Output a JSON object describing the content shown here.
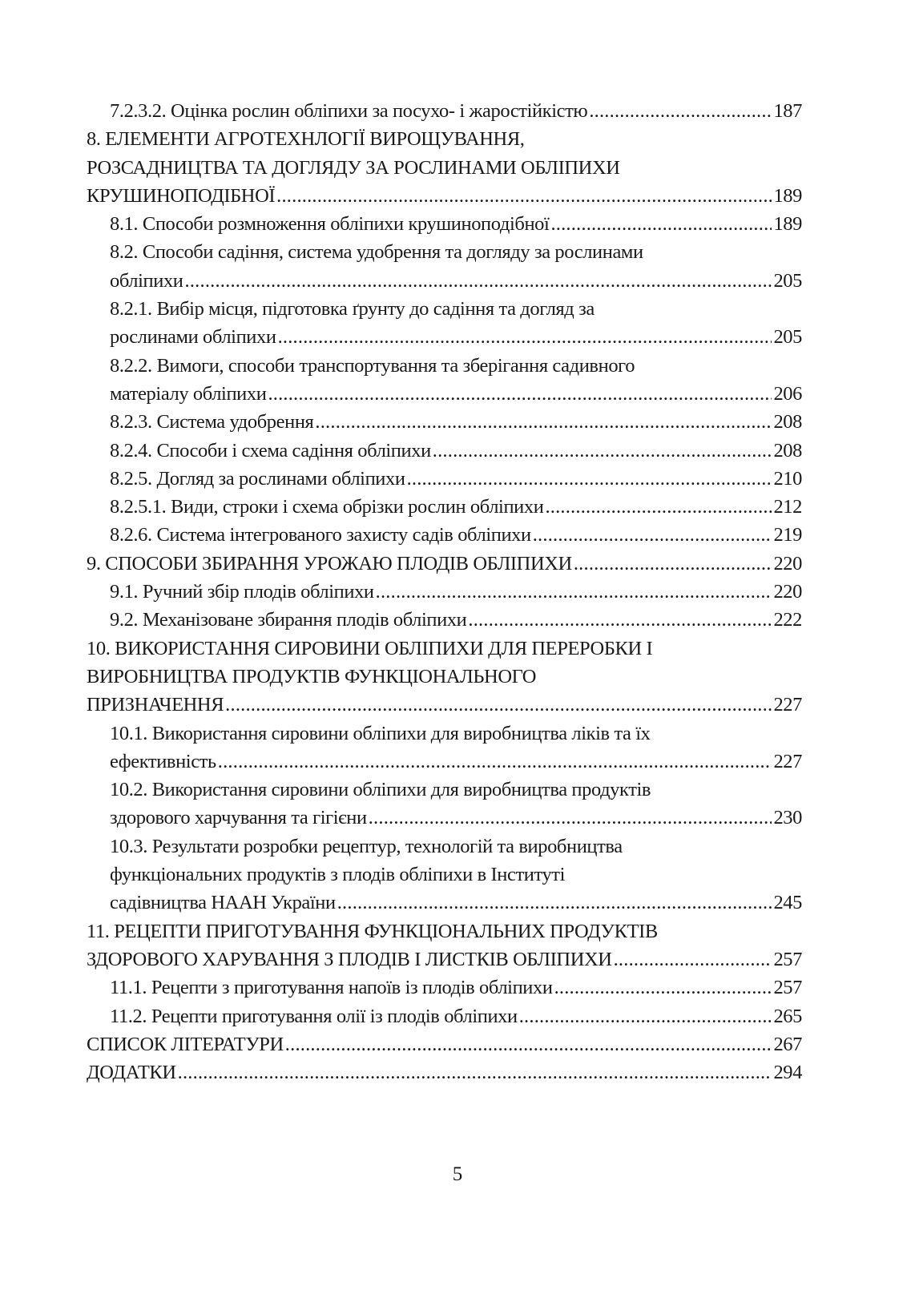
{
  "toc": [
    {
      "level": 1,
      "lines": [
        "7.2.3.2. Оцінка рослин обліпихи за посухо- і жаростійкістю"
      ],
      "page": "187"
    },
    {
      "level": 0,
      "lines": [
        "8. ЕЛЕМЕНТИ АГРОТЕХНЛОГІЇ ВИРОЩУВАННЯ,",
        "РОЗСАДНИЦТВА ТА ДОГЛЯДУ ЗА РОСЛИНАМИ ОБЛІПИХИ",
        "КРУШИНОПОДІБНОЇ "
      ],
      "page": "189"
    },
    {
      "level": 1,
      "lines": [
        "8.1. Способи розмноження обліпихи крушиноподібної"
      ],
      "page": "189"
    },
    {
      "level": 1,
      "lines": [
        "8.2. Способи садіння, система удобрення та догляду за рослинами",
        "обліпихи"
      ],
      "page": "205"
    },
    {
      "level": 1,
      "lines": [
        "8.2.1. Вибір місця, підготовка ґрунту до садіння та догляд за",
        "рослинами обліпихи "
      ],
      "page": "205"
    },
    {
      "level": 1,
      "lines": [
        "8.2.2. Вимоги, способи транспортування та зберігання садивного",
        "матеріалу обліпихи "
      ],
      "page": "206"
    },
    {
      "level": 1,
      "lines": [
        "8.2.3. Система удобрення "
      ],
      "page": "208"
    },
    {
      "level": 1,
      "lines": [
        "8.2.4. Способи і схема садіння обліпихи"
      ],
      "page": "208"
    },
    {
      "level": 1,
      "lines": [
        "8.2.5. Догляд за рослинами обліпихи "
      ],
      "page": "210"
    },
    {
      "level": 1,
      "lines": [
        "8.2.5.1. Види, строки і схема обрізки рослин обліпихи"
      ],
      "page": "212"
    },
    {
      "level": 1,
      "lines": [
        "8.2.6. Система інтегрованого захисту садів обліпихи"
      ],
      "page": "219"
    },
    {
      "level": 0,
      "lines": [
        "9. СПОСОБИ ЗБИРАННЯ УРОЖАЮ  ПЛОДІВ ОБЛІПИХИ "
      ],
      "page": "220"
    },
    {
      "level": 1,
      "lines": [
        "9.1. Ручний збір плодів обліпихи"
      ],
      "page": "220"
    },
    {
      "level": 1,
      "lines": [
        "9.2. Механізоване збирання плодів обліпихи"
      ],
      "page": "222"
    },
    {
      "level": 0,
      "lines": [
        "10. ВИКОРИСТАННЯ СИРОВИНИ ОБЛІПИХИ ДЛЯ ПЕРЕРОБКИ І",
        "ВИРОБНИЦТВА ПРОДУКТІВ ФУНКЦІОНАЛЬНОГО",
        "ПРИЗНАЧЕННЯ"
      ],
      "page": "227"
    },
    {
      "level": 1,
      "lines": [
        "10.1. Використання сировини обліпихи для виробництва ліків та їх",
        "ефективність "
      ],
      "page": "227"
    },
    {
      "level": 1,
      "lines": [
        "10.2. Використання сировини обліпихи для виробництва продуктів",
        "здорового харчування та гігієни "
      ],
      "page": "230"
    },
    {
      "level": 1,
      "lines": [
        "10.3. Результати розробки рецептур, технологій та виробництва",
        "функціональних продуктів з плодів обліпихи в Інституті",
        "садівництва НААН України"
      ],
      "page": "245"
    },
    {
      "level": 0,
      "lines": [
        "11. РЕЦЕПТИ ПРИГОТУВАННЯ ФУНКЦІОНАЛЬНИХ ПРОДУКТІВ",
        "ЗДОРОВОГО ХАРУВАННЯ З ПЛОДІВ І ЛИСТКІВ ОБЛІПИХИ "
      ],
      "page": "257"
    },
    {
      "level": 1,
      "lines": [
        "11.1. Рецепти з приготування напоїв із плодів обліпихи"
      ],
      "page": "257"
    },
    {
      "level": 1,
      "lines": [
        "11.2. Рецепти приготування олії із плодів обліпихи"
      ],
      "page": "265"
    },
    {
      "level": 0,
      "lines": [
        "СПИСОК ЛІТЕРАТУРИ"
      ],
      "page": "267"
    },
    {
      "level": 0,
      "lines": [
        "ДОДАТКИ"
      ],
      "page": "294"
    }
  ],
  "page_number": "5"
}
